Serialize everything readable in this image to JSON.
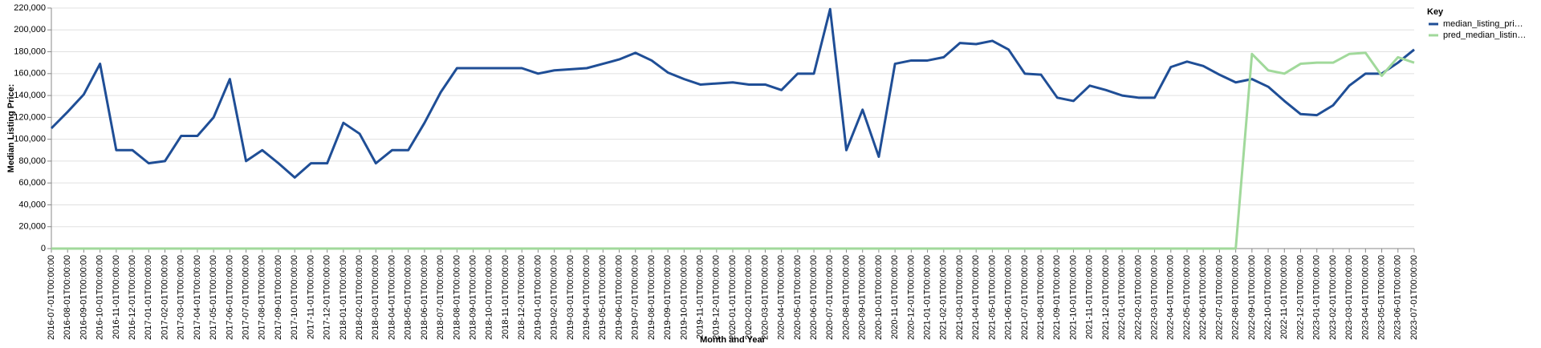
{
  "chart_data": {
    "type": "line",
    "x_label": "Month and Year",
    "y_label": "Median Listing Price:",
    "legend_title": "Key",
    "categories": [
      "2016-07-01T00:00:00",
      "2016-08-01T00:00:00",
      "2016-09-01T00:00:00",
      "2016-10-01T00:00:00",
      "2016-11-01T00:00:00",
      "2016-12-01T00:00:00",
      "2017-01-01T00:00:00",
      "2017-02-01T00:00:00",
      "2017-03-01T00:00:00",
      "2017-04-01T00:00:00",
      "2017-05-01T00:00:00",
      "2017-06-01T00:00:00",
      "2017-07-01T00:00:00",
      "2017-08-01T00:00:00",
      "2017-09-01T00:00:00",
      "2017-10-01T00:00:00",
      "2017-11-01T00:00:00",
      "2017-12-01T00:00:00",
      "2018-01-01T00:00:00",
      "2018-02-01T00:00:00",
      "2018-03-01T00:00:00",
      "2018-04-01T00:00:00",
      "2018-05-01T00:00:00",
      "2018-06-01T00:00:00",
      "2018-07-01T00:00:00",
      "2018-08-01T00:00:00",
      "2018-09-01T00:00:00",
      "2018-10-01T00:00:00",
      "2018-11-01T00:00:00",
      "2018-12-01T00:00:00",
      "2019-01-01T00:00:00",
      "2019-02-01T00:00:00",
      "2019-03-01T00:00:00",
      "2019-04-01T00:00:00",
      "2019-05-01T00:00:00",
      "2019-06-01T00:00:00",
      "2019-07-01T00:00:00",
      "2019-08-01T00:00:00",
      "2019-09-01T00:00:00",
      "2019-10-01T00:00:00",
      "2019-11-01T00:00:00",
      "2019-12-01T00:00:00",
      "2020-01-01T00:00:00",
      "2020-02-01T00:00:00",
      "2020-03-01T00:00:00",
      "2020-04-01T00:00:00",
      "2020-05-01T00:00:00",
      "2020-06-01T00:00:00",
      "2020-07-01T00:00:00",
      "2020-08-01T00:00:00",
      "2020-09-01T00:00:00",
      "2020-10-01T00:00:00",
      "2020-11-01T00:00:00",
      "2020-12-01T00:00:00",
      "2021-01-01T00:00:00",
      "2021-02-01T00:00:00",
      "2021-03-01T00:00:00",
      "2021-04-01T00:00:00",
      "2021-05-01T00:00:00",
      "2021-06-01T00:00:00",
      "2021-07-01T00:00:00",
      "2021-08-01T00:00:00",
      "2021-09-01T00:00:00",
      "2021-10-01T00:00:00",
      "2021-11-01T00:00:00",
      "2021-12-01T00:00:00",
      "2022-01-01T00:00:00",
      "2022-02-01T00:00:00",
      "2022-03-01T00:00:00",
      "2022-04-01T00:00:00",
      "2022-05-01T00:00:00",
      "2022-06-01T00:00:00",
      "2022-07-01T00:00:00",
      "2022-08-01T00:00:00",
      "2022-09-01T00:00:00",
      "2022-10-01T00:00:00",
      "2022-11-01T00:00:00",
      "2022-12-01T00:00:00",
      "2023-01-01T00:00:00",
      "2023-02-01T00:00:00",
      "2023-03-01T00:00:00",
      "2023-04-01T00:00:00",
      "2023-05-01T00:00:00",
      "2023-06-01T00:00:00",
      "2023-07-01T00:00:00"
    ],
    "series": [
      {
        "name": "median_listing_pri…",
        "color": "#1f4e96",
        "values": [
          110000,
          125000,
          141000,
          169000,
          90000,
          90000,
          78000,
          80000,
          103000,
          103000,
          120000,
          155000,
          80000,
          90000,
          78000,
          65000,
          78000,
          78000,
          115000,
          105000,
          78000,
          90000,
          90000,
          115000,
          143000,
          165000,
          165000,
          165000,
          165000,
          165000,
          160000,
          163000,
          164000,
          165000,
          169000,
          173000,
          179000,
          172000,
          161000,
          155000,
          150000,
          151000,
          152000,
          150000,
          150000,
          145000,
          160000,
          160000,
          219000,
          90000,
          127000,
          84000,
          169000,
          172000,
          172000,
          175000,
          188000,
          187000,
          190000,
          182000,
          160000,
          159000,
          138000,
          135000,
          149000,
          145000,
          140000,
          138000,
          138000,
          166000,
          171000,
          167000,
          159000,
          152000,
          155000,
          148000,
          135000,
          123000,
          122000,
          131000,
          149000,
          160000,
          160000,
          170000,
          182000
        ]
      },
      {
        "name": "pred_median_listin…",
        "color": "#a1d99b",
        "values": [
          0,
          0,
          0,
          0,
          0,
          0,
          0,
          0,
          0,
          0,
          0,
          0,
          0,
          0,
          0,
          0,
          0,
          0,
          0,
          0,
          0,
          0,
          0,
          0,
          0,
          0,
          0,
          0,
          0,
          0,
          0,
          0,
          0,
          0,
          0,
          0,
          0,
          0,
          0,
          0,
          0,
          0,
          0,
          0,
          0,
          0,
          0,
          0,
          0,
          0,
          0,
          0,
          0,
          0,
          0,
          0,
          0,
          0,
          0,
          0,
          0,
          0,
          0,
          0,
          0,
          0,
          0,
          0,
          0,
          0,
          0,
          0,
          0,
          0,
          178000,
          163000,
          160000,
          169000,
          170000,
          170000,
          178000,
          179000,
          158000,
          175000,
          170000
        ]
      }
    ],
    "ylim": [
      0,
      220000
    ],
    "yticks": [
      0,
      {
        "value": 20000,
        "label": "20,000"
      },
      {
        "value": 40000,
        "label": "40,000"
      },
      {
        "value": 60000,
        "label": "60,000"
      },
      {
        "value": 80000,
        "label": "80,000"
      },
      {
        "value": 100000,
        "label": "100,000"
      },
      {
        "value": 120000,
        "label": "120,000"
      },
      {
        "value": 140000,
        "label": "140,000"
      },
      {
        "value": 160000,
        "label": "160,000"
      },
      {
        "value": 180000,
        "label": "180,000"
      },
      {
        "value": 200000,
        "label": "200,000"
      },
      {
        "value": 220000,
        "label": "220,000"
      }
    ],
    "grid": true,
    "legend": "right"
  }
}
